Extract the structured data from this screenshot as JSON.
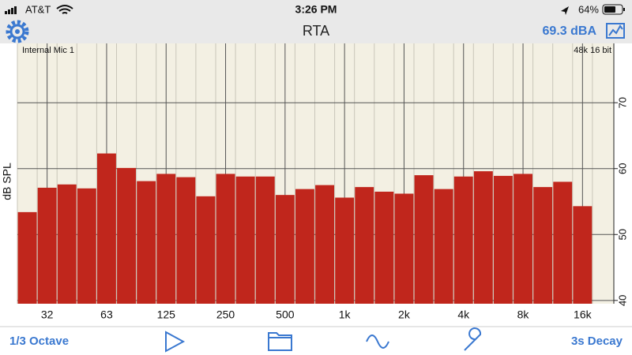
{
  "status_bar": {
    "carrier": "AT&T",
    "time": "3:26 PM",
    "battery": "64%"
  },
  "nav_bar": {
    "title": "RTA",
    "level": "69.3 dBA"
  },
  "toolbar": {
    "left": "1/3 Octave",
    "right": "3s Decay"
  },
  "chart_data": {
    "type": "bar",
    "input_label": "Internal Mic 1",
    "format_label": "48k 16 bit",
    "y_label": "dB SPL",
    "color": "#c0261c",
    "categories": [
      null,
      "32",
      null,
      null,
      "63",
      null,
      null,
      "125",
      null,
      null,
      "250",
      null,
      null,
      "500",
      null,
      null,
      "1k",
      null,
      null,
      "2k",
      null,
      null,
      "4k",
      null,
      null,
      "8k",
      null,
      null,
      "16k"
    ],
    "values": [
      53.4,
      57.1,
      57.6,
      57.0,
      62.3,
      60.1,
      58.1,
      59.2,
      58.7,
      55.8,
      59.2,
      58.8,
      58.8,
      56.0,
      56.9,
      57.5,
      55.6,
      57.2,
      56.5,
      56.2,
      59.0,
      56.9,
      58.8,
      59.6,
      58.9,
      59.2,
      57.2,
      58.0,
      54.3
    ],
    "ylim": [
      39.5,
      79
    ],
    "yticks": [
      40,
      50,
      60,
      70
    ],
    "grid": true
  }
}
